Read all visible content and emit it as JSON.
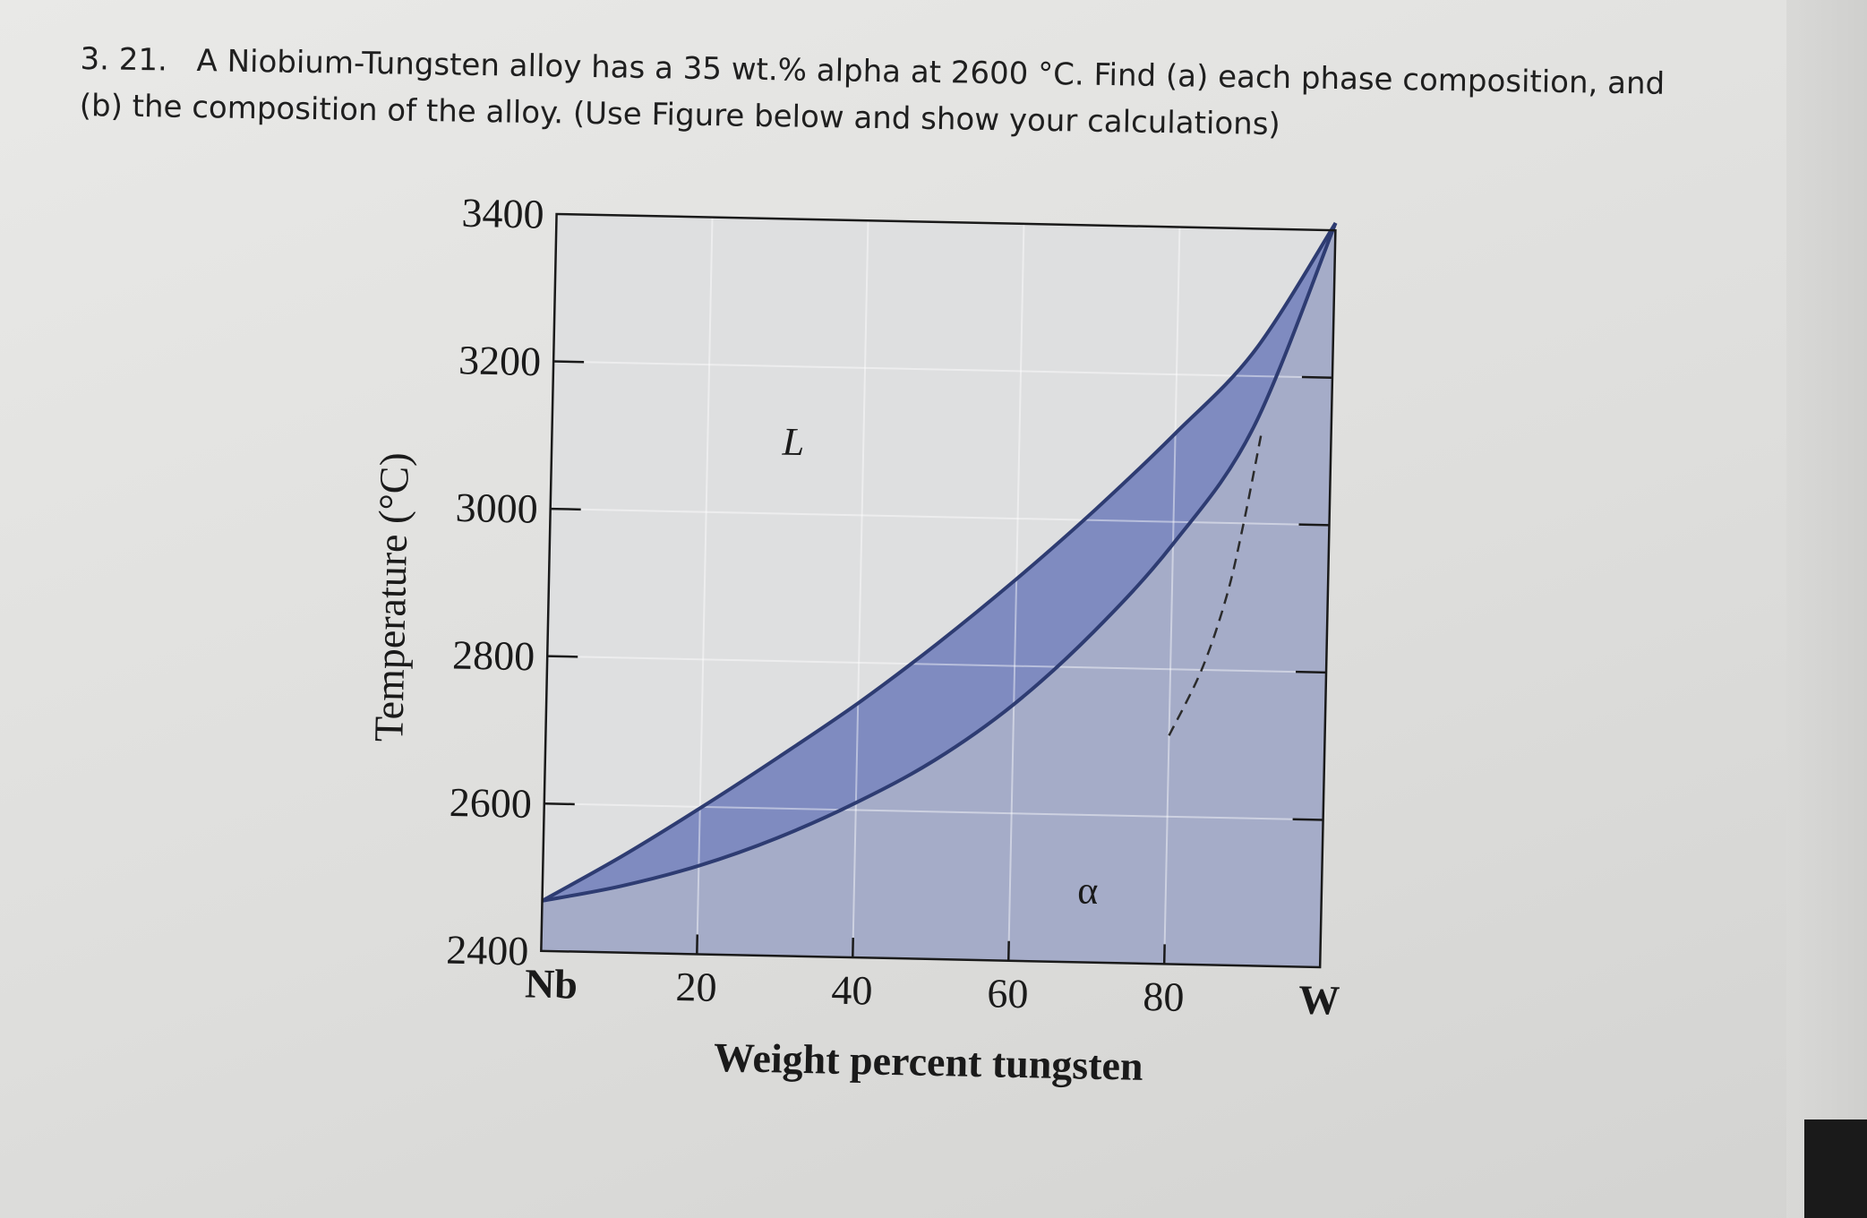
{
  "question": {
    "number": "3. 21.",
    "line1": "A Niobium-Tungsten alloy has a 35 wt.% alpha at 2600 °C. Find (a) each phase composition, and",
    "line2": "(b) the composition of the alloy. (Use Figure below and show your calculations)"
  },
  "chart_data": {
    "type": "area",
    "xlabel": "Weight percent tungsten",
    "ylabel": "Temperature (°C)",
    "xlim": [
      0,
      100
    ],
    "ylim": [
      2400,
      3400
    ],
    "x_ticks": [
      {
        "value": 0,
        "label": "Nb"
      },
      {
        "value": 20,
        "label": "20"
      },
      {
        "value": 40,
        "label": "40"
      },
      {
        "value": 60,
        "label": "60"
      },
      {
        "value": 80,
        "label": "80"
      },
      {
        "value": 100,
        "label": "W"
      }
    ],
    "y_ticks": [
      {
        "value": 2400,
        "label": "2400"
      },
      {
        "value": 2600,
        "label": "2600"
      },
      {
        "value": 2800,
        "label": "2800"
      },
      {
        "value": 3000,
        "label": "3000"
      },
      {
        "value": 3200,
        "label": "3200"
      },
      {
        "value": 3400,
        "label": "3400"
      }
    ],
    "grid": true,
    "series": [
      {
        "name": "liquidus",
        "points": [
          [
            0,
            2468
          ],
          [
            10,
            2530
          ],
          [
            20,
            2598
          ],
          [
            30,
            2670
          ],
          [
            40,
            2745
          ],
          [
            50,
            2828
          ],
          [
            60,
            2918
          ],
          [
            70,
            3015
          ],
          [
            80,
            3120
          ],
          [
            90,
            3235
          ],
          [
            100,
            3410
          ]
        ]
      },
      {
        "name": "solidus",
        "points": [
          [
            0,
            2468
          ],
          [
            10,
            2490
          ],
          [
            20,
            2520
          ],
          [
            30,
            2560
          ],
          [
            40,
            2610
          ],
          [
            50,
            2670
          ],
          [
            60,
            2748
          ],
          [
            70,
            2848
          ],
          [
            80,
            2970
          ],
          [
            90,
            3130
          ],
          [
            100,
            3410
          ]
        ]
      },
      {
        "name": "dashed",
        "points": [
          [
            80,
            2710
          ],
          [
            84,
            2800
          ],
          [
            87,
            2900
          ],
          [
            89,
            3000
          ],
          [
            91,
            3120
          ]
        ]
      }
    ],
    "region_labels": [
      {
        "text": "L",
        "x": 31,
        "y": 3080
      },
      {
        "text": "α",
        "x": 70,
        "y": 2480
      }
    ],
    "colors": {
      "two_phase": "#7f8bc0",
      "alpha_region": "#a5acc8",
      "liquid_region": "#dedfe0",
      "curve": "#2e3c72"
    }
  }
}
